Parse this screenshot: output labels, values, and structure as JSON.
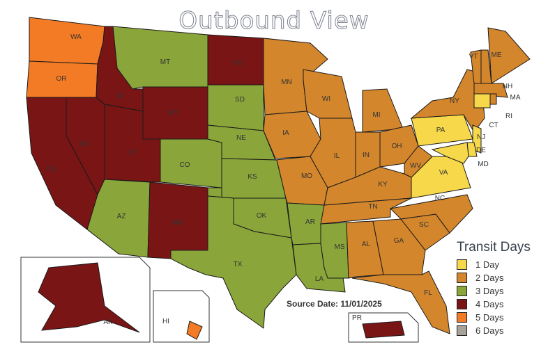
{
  "title": "Outbound View",
  "source_date": "Source Date: 11/01/2025",
  "legend": {
    "title": "Transit Days",
    "items": [
      {
        "days": 1,
        "label": "1 Day",
        "color": "#f6d84a"
      },
      {
        "days": 2,
        "label": "2 Days",
        "color": "#d3862c"
      },
      {
        "days": 3,
        "label": "3 Days",
        "color": "#8aa53a"
      },
      {
        "days": 4,
        "label": "4 Days",
        "color": "#7a1515"
      },
      {
        "days": 5,
        "label": "5 Days",
        "color": "#f47b25"
      },
      {
        "days": 6,
        "label": "6 Days",
        "color": "#a8a39a"
      }
    ]
  },
  "states": [
    {
      "code": "WA",
      "days": 5
    },
    {
      "code": "OR",
      "days": 5
    },
    {
      "code": "CA",
      "days": 4
    },
    {
      "code": "NV",
      "days": 4
    },
    {
      "code": "ID",
      "days": 4
    },
    {
      "code": "MT",
      "days": 3
    },
    {
      "code": "WY",
      "days": 4
    },
    {
      "code": "UT",
      "days": 4
    },
    {
      "code": "CO",
      "days": 3
    },
    {
      "code": "AZ",
      "days": 3
    },
    {
      "code": "NM",
      "days": 4
    },
    {
      "code": "ND",
      "days": 4
    },
    {
      "code": "SD",
      "days": 3
    },
    {
      "code": "NE",
      "days": 3
    },
    {
      "code": "KS",
      "days": 3
    },
    {
      "code": "OK",
      "days": 3
    },
    {
      "code": "TX",
      "days": 3
    },
    {
      "code": "MN",
      "days": 2
    },
    {
      "code": "IA",
      "days": 2
    },
    {
      "code": "MO",
      "days": 2
    },
    {
      "code": "AR",
      "days": 3
    },
    {
      "code": "LA",
      "days": 3
    },
    {
      "code": "WI",
      "days": 2
    },
    {
      "code": "IL",
      "days": 2
    },
    {
      "code": "MI",
      "days": 2
    },
    {
      "code": "IN",
      "days": 2
    },
    {
      "code": "OH",
      "days": 2
    },
    {
      "code": "KY",
      "days": 2
    },
    {
      "code": "TN",
      "days": 2
    },
    {
      "code": "MS",
      "days": 3
    },
    {
      "code": "AL",
      "days": 2
    },
    {
      "code": "GA",
      "days": 2
    },
    {
      "code": "FL",
      "days": 2
    },
    {
      "code": "SC",
      "days": 2
    },
    {
      "code": "NC",
      "days": 2
    },
    {
      "code": "VA",
      "days": 1
    },
    {
      "code": "WV",
      "days": 2
    },
    {
      "code": "PA",
      "days": 1
    },
    {
      "code": "NY",
      "days": 2
    },
    {
      "code": "VT",
      "days": 2
    },
    {
      "code": "NH",
      "days": 2
    },
    {
      "code": "ME",
      "days": 2
    },
    {
      "code": "MA",
      "days": 2
    },
    {
      "code": "CT",
      "days": 1
    },
    {
      "code": "RI",
      "days": 2
    },
    {
      "code": "NJ",
      "days": 1
    },
    {
      "code": "DE",
      "days": 1
    },
    {
      "code": "MD",
      "days": 1
    },
    {
      "code": "AK",
      "days": 4
    },
    {
      "code": "HI",
      "days": 5
    },
    {
      "code": "PR",
      "days": 4
    }
  ]
}
